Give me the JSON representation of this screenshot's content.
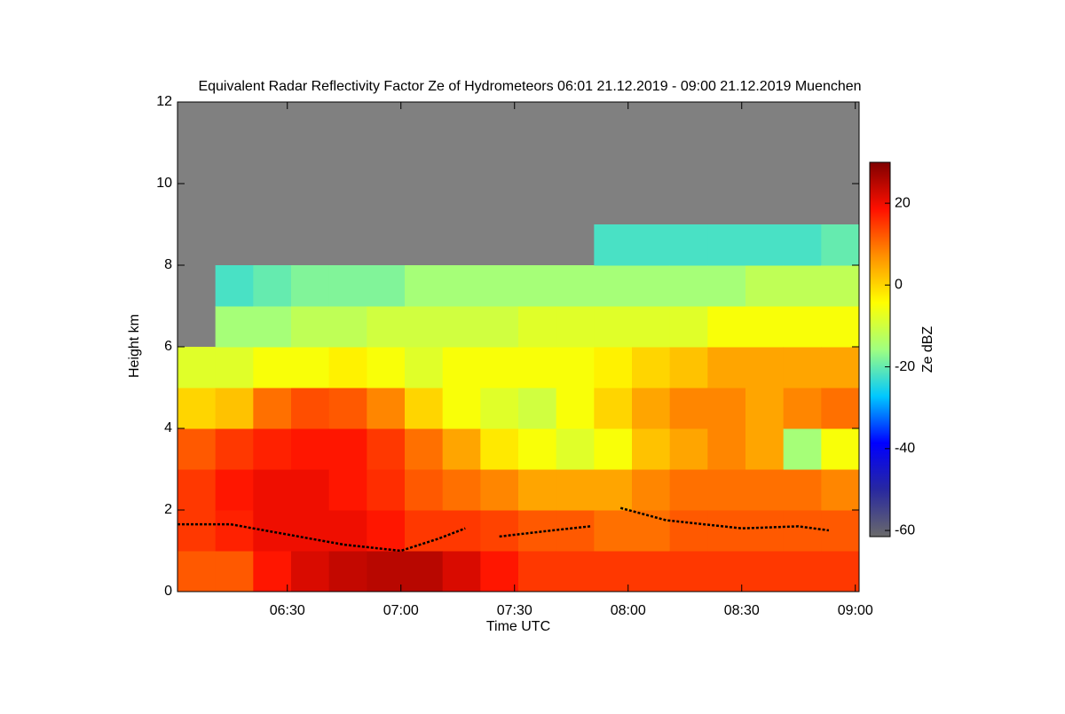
{
  "chart_data": {
    "type": "heatmap",
    "title": "Equivalent Radar Reflectivity Factor Ze of Hydrometeors   06:01 21.12.2019 - 09:00 21.12.2019 Muenchen",
    "xlabel": "Time UTC",
    "ylabel": "Height km",
    "colorbar_label": "Ze dBZ",
    "xlim": [
      361,
      541
    ],
    "xticks": [
      {
        "value": 390,
        "label": "06:30"
      },
      {
        "value": 420,
        "label": "07:00"
      },
      {
        "value": 450,
        "label": "07:30"
      },
      {
        "value": 480,
        "label": "08:00"
      },
      {
        "value": 510,
        "label": "08:30"
      },
      {
        "value": 540,
        "label": "09:00"
      }
    ],
    "ylim": [
      0,
      12
    ],
    "yticks": [
      0,
      2,
      4,
      6,
      8,
      10,
      12
    ],
    "clim": [
      -61.5,
      30
    ],
    "cticks": [
      -60,
      -40,
      -20,
      0,
      20
    ],
    "colormap": [
      "#6a6a6a",
      "#2828a0",
      "#0000ff",
      "#00c8ff",
      "#a0ff80",
      "#ffff00",
      "#ff9000",
      "#ff1000",
      "#800000"
    ],
    "background": "#808080",
    "x": [
      361,
      371,
      381,
      391,
      401,
      411,
      421,
      431,
      441,
      451,
      461,
      471,
      481,
      491,
      501,
      511,
      521,
      531
    ],
    "y": [
      0,
      1,
      2,
      3,
      4,
      5,
      6,
      7,
      8,
      9,
      10,
      11
    ],
    "z": [
      [
        12,
        15,
        15,
        12,
        0,
        -8,
        null,
        null,
        null,
        null,
        null,
        null
      ],
      [
        12,
        17,
        18,
        15,
        2,
        -8,
        -15,
        -22,
        null,
        null,
        null,
        null
      ],
      [
        18,
        20,
        20,
        17,
        10,
        -5,
        -15,
        -20,
        null,
        null,
        null,
        null
      ],
      [
        22,
        20,
        20,
        18,
        13,
        -5,
        -12,
        -18,
        null,
        null,
        null,
        null
      ],
      [
        24,
        20,
        18,
        18,
        12,
        -3,
        -12,
        -18,
        null,
        null,
        null,
        null
      ],
      [
        25,
        18,
        16,
        15,
        8,
        -5,
        -10,
        -18,
        null,
        null,
        null,
        null
      ],
      [
        25,
        15,
        12,
        10,
        0,
        -8,
        -10,
        -15,
        null,
        null,
        null,
        null
      ],
      [
        22,
        15,
        10,
        5,
        -5,
        -5,
        -10,
        -15,
        null,
        null,
        null,
        null
      ],
      [
        18,
        14,
        8,
        -2,
        -8,
        -5,
        -10,
        -15,
        null,
        null,
        null,
        null
      ],
      [
        15,
        12,
        5,
        -5,
        -10,
        -5,
        -8,
        -15,
        null,
        null,
        null,
        null
      ],
      [
        15,
        12,
        5,
        -8,
        -5,
        -5,
        -8,
        -15,
        null,
        null,
        null,
        null
      ],
      [
        15,
        10,
        5,
        -5,
        0,
        -3,
        -8,
        -15,
        -22,
        null,
        null,
        null
      ],
      [
        15,
        10,
        8,
        2,
        5,
        0,
        -8,
        -15,
        -22,
        null,
        null,
        null
      ],
      [
        15,
        12,
        10,
        5,
        8,
        2,
        -8,
        -15,
        -22,
        null,
        null,
        null
      ],
      [
        15,
        12,
        10,
        8,
        8,
        5,
        -5,
        -15,
        -22,
        null,
        null,
        null
      ],
      [
        15,
        12,
        10,
        5,
        5,
        5,
        -5,
        -12,
        -22,
        null,
        null,
        null
      ],
      [
        15,
        12,
        10,
        -15,
        8,
        5,
        -5,
        -12,
        -22,
        null,
        null,
        null
      ],
      [
        15,
        12,
        8,
        -5,
        10,
        5,
        -5,
        -12,
        -20,
        null,
        null,
        null
      ]
    ],
    "lines": [
      {
        "color": "#000000",
        "x": [
          361,
          375,
          390,
          405,
          420,
          430,
          437,
          null,
          446,
          460,
          470,
          null,
          478,
          490,
          510,
          525,
          533
        ],
        "y": [
          1.65,
          1.65,
          1.4,
          1.15,
          1.0,
          1.3,
          1.55,
          null,
          1.35,
          1.5,
          1.6,
          null,
          2.05,
          1.75,
          1.55,
          1.6,
          1.5
        ]
      }
    ]
  }
}
